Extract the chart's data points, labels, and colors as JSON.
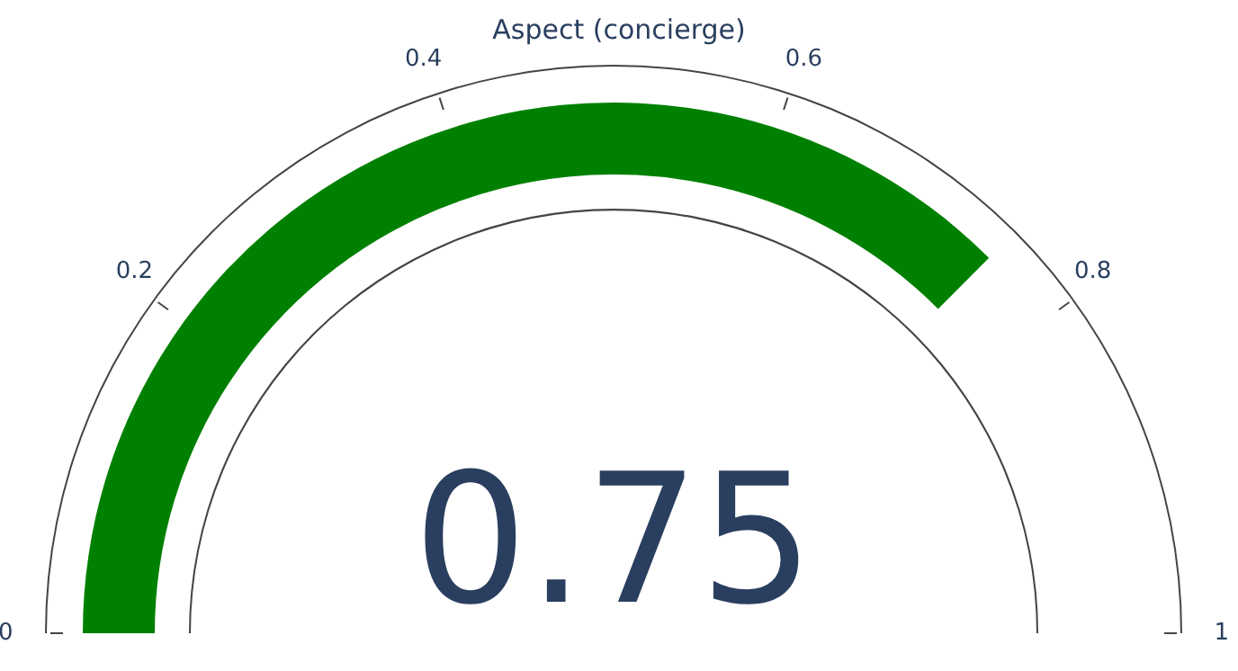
{
  "chart_data": {
    "type": "other",
    "title": "Aspect (concierge)",
    "values": [
      0.75
    ],
    "color": "#008000",
    "data_labels": true,
    "annotations": [
      "0",
      "0.2",
      "0.4",
      "0.6",
      "0.8",
      "1"
    ]
  }
}
